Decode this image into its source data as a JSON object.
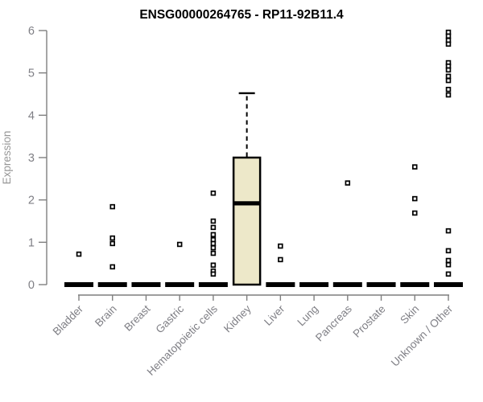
{
  "chart_data": {
    "type": "boxplot",
    "title": "ENSG00000264765 - RP11-92B11.4",
    "ylabel": "Expression",
    "xlabel": "",
    "ylim": [
      0,
      6
    ],
    "yticks": [
      "0",
      "1",
      "2",
      "3",
      "4",
      "5",
      "6"
    ],
    "grid": false,
    "legend": false,
    "categories": [
      "Bladder",
      "Brain",
      "Breast",
      "Gastric",
      "Hematopoietic cells",
      "Kidney",
      "Liver",
      "Lung",
      "Pancreas",
      "Prostate",
      "Skin",
      "Unknown / Other"
    ],
    "series": [
      {
        "category": "Bladder",
        "q1": 0,
        "median": 0,
        "q3": 0,
        "whisker_low": 0,
        "whisker_high": 0,
        "outliers": [
          0.72
        ]
      },
      {
        "category": "Brain",
        "q1": 0,
        "median": 0,
        "q3": 0,
        "whisker_low": 0,
        "whisker_high": 0,
        "outliers": [
          1.84,
          1.1,
          0.97,
          0.42
        ]
      },
      {
        "category": "Breast",
        "q1": 0,
        "median": 0,
        "q3": 0,
        "whisker_low": 0,
        "whisker_high": 0,
        "outliers": []
      },
      {
        "category": "Gastric",
        "q1": 0,
        "median": 0,
        "q3": 0,
        "whisker_low": 0,
        "whisker_high": 0,
        "outliers": [
          0.95
        ]
      },
      {
        "category": "Hematopoietic cells",
        "q1": 0,
        "median": 0,
        "q3": 0,
        "whisker_low": 0,
        "whisker_high": 0,
        "outliers": [
          2.16,
          1.5,
          1.35,
          1.18,
          1.06,
          0.97,
          0.87,
          0.74,
          0.46,
          0.32,
          0.25
        ]
      },
      {
        "category": "Kidney",
        "q1": 0,
        "median": 1.92,
        "q3": 3.0,
        "whisker_low": 0,
        "whisker_high": 4.52,
        "outliers": []
      },
      {
        "category": "Liver",
        "q1": 0,
        "median": 0,
        "q3": 0,
        "whisker_low": 0,
        "whisker_high": 0,
        "outliers": [
          0.91,
          0.59
        ]
      },
      {
        "category": "Lung",
        "q1": 0,
        "median": 0,
        "q3": 0,
        "whisker_low": 0,
        "whisker_high": 0,
        "outliers": []
      },
      {
        "category": "Pancreas",
        "q1": 0,
        "median": 0,
        "q3": 0,
        "whisker_low": 0,
        "whisker_high": 0,
        "outliers": [
          2.4
        ]
      },
      {
        "category": "Prostate",
        "q1": 0,
        "median": 0,
        "q3": 0,
        "whisker_low": 0,
        "whisker_high": 0,
        "outliers": []
      },
      {
        "category": "Skin",
        "q1": 0,
        "median": 0,
        "q3": 0,
        "whisker_low": 0,
        "whisker_high": 0,
        "outliers": [
          2.78,
          2.03,
          1.69
        ]
      },
      {
        "category": "Unknown / Other",
        "q1": 0,
        "median": 0,
        "q3": 0,
        "whisker_low": 0,
        "whisker_high": 0,
        "outliers": [
          5.96,
          5.87,
          5.77,
          5.68,
          5.24,
          5.16,
          5.07,
          4.92,
          4.82,
          4.61,
          4.48,
          1.27,
          0.8,
          0.57,
          0.47,
          0.25
        ]
      }
    ],
    "colors": {
      "title": "#000000",
      "box_fill": "#EDE8C9",
      "box_border": "#000000",
      "median": "#000000",
      "whisker": "#000000",
      "outlier_stroke": "#000000",
      "outlier_fill": "#FFFFFF",
      "axis": "#7F7F7F",
      "tick_label": "#7F7F85",
      "axis_title": "#969696",
      "background": "#FFFFFF"
    }
  }
}
